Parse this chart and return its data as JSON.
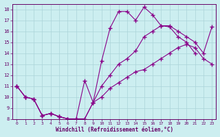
{
  "background_color": "#cceef0",
  "grid_color": "#aad4d8",
  "line_color": "#880088",
  "marker": "+",
  "xlabel": "Windchill (Refroidissement éolien,°C)",
  "xlabel_color": "#660066",
  "tick_color": "#660066",
  "spine_color": "#660066",
  "xlim": [
    -0.5,
    23.5
  ],
  "ylim": [
    8,
    18.5
  ],
  "yticks": [
    8,
    9,
    10,
    11,
    12,
    13,
    14,
    15,
    16,
    17,
    18
  ],
  "xticks": [
    0,
    1,
    2,
    3,
    4,
    5,
    6,
    7,
    8,
    9,
    10,
    11,
    12,
    13,
    14,
    15,
    16,
    17,
    18,
    19,
    20,
    21,
    22,
    23
  ],
  "series": [
    {
      "x": [
        0,
        1,
        2,
        3,
        4,
        5,
        6,
        7,
        8,
        9,
        10,
        11,
        12,
        13,
        14,
        15,
        16,
        17,
        18,
        19,
        20,
        21
      ],
      "y": [
        11.0,
        10.0,
        9.8,
        8.3,
        8.5,
        8.2,
        8.0,
        8.0,
        11.5,
        9.5,
        13.3,
        16.3,
        17.8,
        17.8,
        17.0,
        18.2,
        17.5,
        16.5,
        16.4,
        15.5,
        15.0,
        14.0
      ]
    },
    {
      "x": [
        0,
        1,
        2,
        3,
        4,
        5,
        6,
        7,
        8,
        9,
        10,
        11,
        12,
        13,
        14,
        15,
        16,
        17,
        18,
        19,
        20,
        21,
        22,
        23
      ],
      "y": [
        11.0,
        10.0,
        9.8,
        8.3,
        8.5,
        8.2,
        8.0,
        8.0,
        8.0,
        9.5,
        11.0,
        12.0,
        13.0,
        13.5,
        14.2,
        15.5,
        16.0,
        16.5,
        16.5,
        16.0,
        15.5,
        15.0,
        14.0,
        16.4
      ]
    },
    {
      "x": [
        0,
        1,
        2,
        3,
        4,
        5,
        6,
        7,
        8,
        9,
        10,
        11,
        12,
        13,
        14,
        15,
        16,
        17,
        18,
        19,
        20,
        21,
        22,
        23
      ],
      "y": [
        11.0,
        10.0,
        9.8,
        8.3,
        8.5,
        8.2,
        8.0,
        8.0,
        8.0,
        9.5,
        10.0,
        10.8,
        11.3,
        11.8,
        12.3,
        12.5,
        13.0,
        13.5,
        14.0,
        14.5,
        14.8,
        14.5,
        13.5,
        13.0
      ]
    }
  ]
}
